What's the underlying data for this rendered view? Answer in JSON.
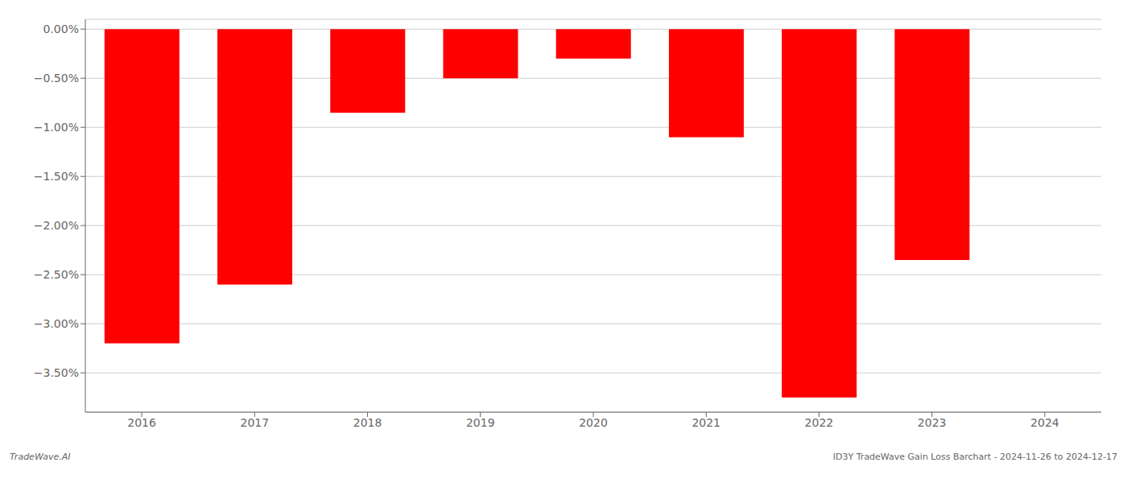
{
  "chart_data": {
    "type": "bar",
    "categories": [
      "2016",
      "2017",
      "2018",
      "2019",
      "2020",
      "2021",
      "2022",
      "2023",
      "2024"
    ],
    "values": [
      -3.2,
      -2.6,
      -0.85,
      -0.5,
      -0.3,
      -1.1,
      -3.75,
      -2.35,
      0.0
    ],
    "color": "#ff0000",
    "ylim": [
      -3.9,
      0.1
    ],
    "yticks": [
      {
        "value": 0.0,
        "label": "0.00%"
      },
      {
        "value": -0.5,
        "label": "−0.50%"
      },
      {
        "value": -1.0,
        "label": "−1.00%"
      },
      {
        "value": -1.5,
        "label": "−1.50%"
      },
      {
        "value": -2.0,
        "label": "−2.00%"
      },
      {
        "value": -2.5,
        "label": "−2.50%"
      },
      {
        "value": -3.0,
        "label": "−3.00%"
      },
      {
        "value": -3.5,
        "label": "−3.50%"
      }
    ],
    "grid": true,
    "annotations": [
      "TradeWave.AI",
      "ID3Y TradeWave Gain Loss Barchart - 2024-11-26 to 2024-12-17"
    ]
  }
}
